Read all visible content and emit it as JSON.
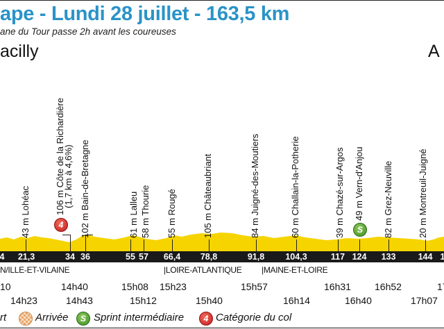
{
  "header": {
    "title": "ape - Lundi 28 juillet - 163,5 km",
    "subtitle": "ane du Tour passe 2h avant les coureuses",
    "start_city": "acilly",
    "end_city": "A"
  },
  "colors": {
    "title": "#2a93c8",
    "profile_fill": "#f5d400",
    "km_bar": "#1a1a1a",
    "sprint": "#4a9a2c",
    "climb": "#d42a2a"
  },
  "km_markers": [
    "4",
    "21,3",
    "34",
    "36",
    "55",
    "57",
    "66,4",
    "78,8",
    "91,8",
    "104,3",
    "117",
    "124",
    "133",
    "144",
    "1"
  ],
  "places": [
    {
      "label": "43 m Lohéac"
    },
    {
      "label": "106 m Côte de la Richardière",
      "label2": "(1,7 km à 4,6%)",
      "icon": "climb-category-4-icon",
      "category": "4"
    },
    {
      "label": "102 m Bain-de-Bretagne"
    },
    {
      "label": "61 m Lalleu"
    },
    {
      "label": "58 m Thourie"
    },
    {
      "label": "55 m Rougé"
    },
    {
      "label": "105 m Châteaubriant"
    },
    {
      "label": "84 m Juigné-des-Moutiers"
    },
    {
      "label": "60 m Challain-la-Potherie"
    },
    {
      "label": "39 m Chazé-sur-Argos"
    },
    {
      "label": "49 m Vern-d'Anjou",
      "icon": "sprint-icon",
      "sprint": "S"
    },
    {
      "label": "82 m Grez-Neuville"
    },
    {
      "label": "20 m Montreuil-Juigné"
    }
  ],
  "departments": [
    "N/ILLE-ET-VILAINE",
    "|LOIRE-ATLANTIQUE",
    "|MAINE-ET-LOIRE"
  ],
  "times_row1": [
    "10",
    "14h40",
    "15h08",
    "15h23",
    "15h57",
    "16h31",
    "16h52",
    "17"
  ],
  "times_row2": [
    "14h23",
    "14h43",
    "15h12",
    "15h40",
    "16h14",
    "16h40",
    "17h07"
  ],
  "legend": {
    "depart": "rt",
    "arrivee": "Arrivée",
    "sprint_symbol": "S",
    "sprint": "Sprint intermédiaire",
    "climb_symbol": "4",
    "climb": "Catégorie du col"
  }
}
